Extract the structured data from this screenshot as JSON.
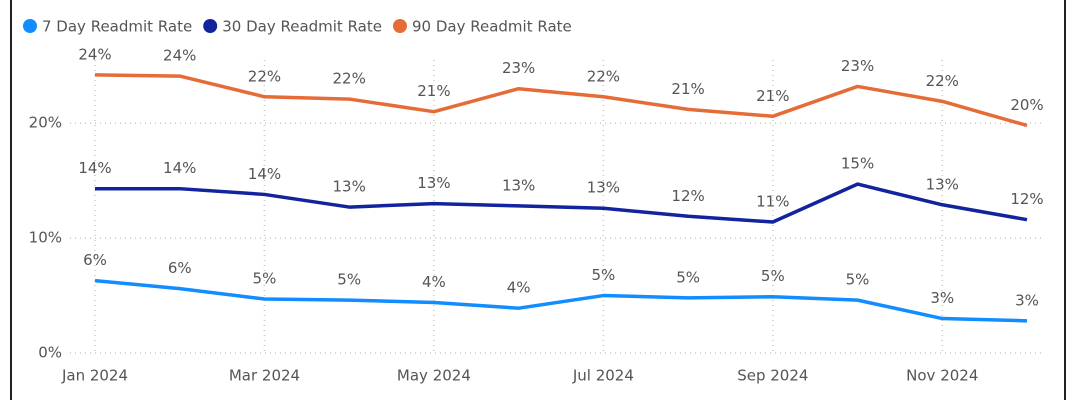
{
  "chart_data": {
    "type": "line",
    "categories": [
      "Jan 2024",
      null,
      "Mar 2024",
      null,
      "May 2024",
      null,
      "Jul 2024",
      null,
      "Sep 2024",
      null,
      "Nov 2024",
      null
    ],
    "series": [
      {
        "name": "7 Day Readmit Rate",
        "color": "#118dff",
        "values": [
          6.3,
          5.6,
          4.7,
          4.6,
          4.4,
          3.9,
          5.0,
          4.8,
          4.9,
          4.6,
          3.0,
          2.8
        ],
        "value_labels": [
          "6%",
          "6%",
          "5%",
          "5%",
          "4%",
          "4%",
          "5%",
          "5%",
          "5%",
          "5%",
          "3%",
          "3%"
        ]
      },
      {
        "name": "30 Day Readmit Rate",
        "color": "#12239e",
        "values": [
          14.3,
          14.3,
          13.8,
          12.7,
          13.0,
          12.8,
          12.6,
          11.9,
          11.4,
          14.7,
          12.9,
          11.6
        ],
        "value_labels": [
          "14%",
          "14%",
          "14%",
          "13%",
          "13%",
          "13%",
          "13%",
          "12%",
          "11%",
          "15%",
          "13%",
          "12%"
        ]
      },
      {
        "name": "90 Day Readmit Rate",
        "color": "#e66c37",
        "values": [
          24.2,
          24.1,
          22.3,
          22.1,
          21.0,
          23.0,
          22.3,
          21.2,
          20.6,
          23.2,
          21.9,
          19.8
        ],
        "value_labels": [
          "24%",
          "24%",
          "22%",
          "22%",
          "21%",
          "23%",
          "22%",
          "21%",
          "21%",
          "23%",
          "22%",
          "20%"
        ]
      }
    ],
    "ylim": [
      0,
      25.5
    ],
    "yticks": [
      {
        "value": 0,
        "label": "0%"
      },
      {
        "value": 10,
        "label": "10%"
      },
      {
        "value": 20,
        "label": "20%"
      }
    ],
    "grid": true,
    "legend": "top-left"
  }
}
